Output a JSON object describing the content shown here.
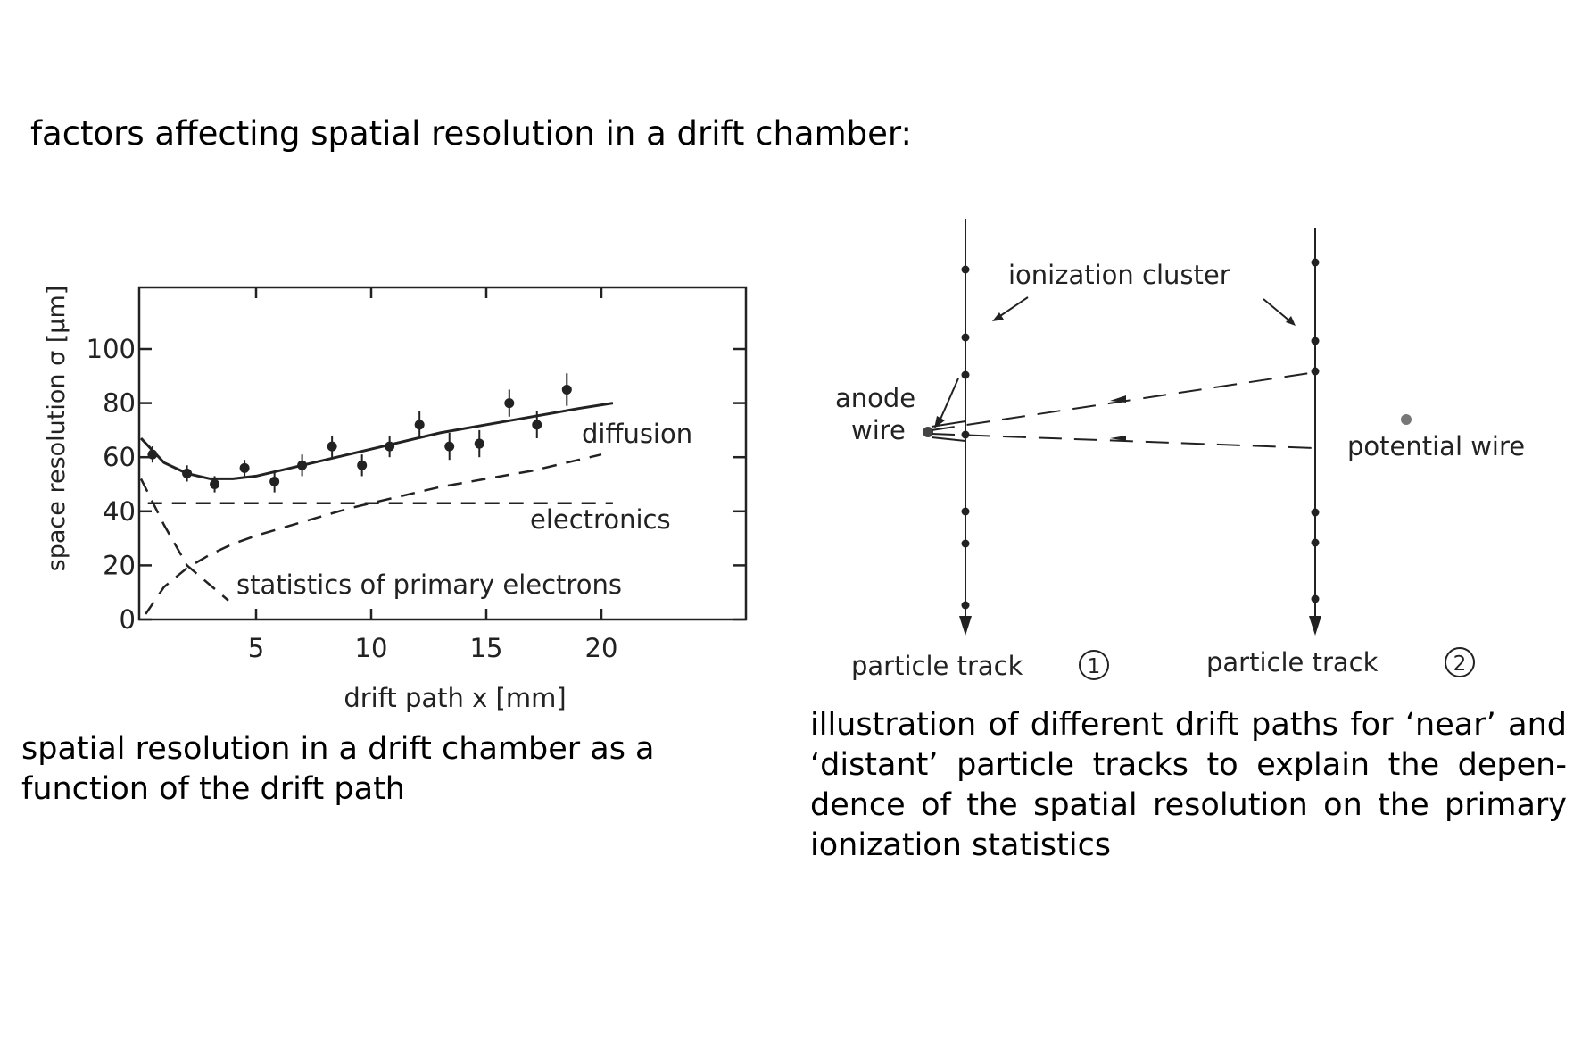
{
  "heading": "factors affecting spatial resolution in a drift chamber:",
  "left_caption": "spatial resolution in a drift chamber as a function of the drift path",
  "right_caption": "illustration of different drift paths for ‘near’ and ‘distant’ particle tracks to explain the dependence of the spatial resolution on the primary ionization statistics",
  "chart_data": {
    "type": "line",
    "xlabel": "drift  path  x [mm]",
    "ylabel": "space  resolution σ [μm]",
    "xlim": [
      0,
      26
    ],
    "ylim": [
      0,
      120
    ],
    "x_ticks": [
      5,
      10,
      15,
      20
    ],
    "y_ticks": [
      0,
      20,
      40,
      60,
      80,
      100
    ],
    "grid": false,
    "measurements": {
      "x": [
        0.5,
        2.0,
        3.2,
        4.5,
        5.8,
        7.0,
        8.3,
        9.6,
        10.8,
        12.1,
        13.4,
        14.7,
        16.0,
        17.2,
        18.5
      ],
      "y": [
        61,
        54,
        50,
        56,
        51,
        57,
        64,
        57,
        64,
        72,
        64,
        65,
        80,
        72,
        85
      ],
      "err": [
        3,
        3,
        3,
        3,
        4,
        4,
        4,
        4,
        4,
        5,
        5,
        5,
        5,
        5,
        6
      ]
    },
    "series": [
      {
        "name": "diffusion",
        "style": "solid",
        "x": [
          0,
          1,
          2,
          3,
          4,
          5,
          7,
          9,
          11,
          13,
          15,
          17,
          19,
          20.5
        ],
        "y": [
          67,
          58,
          54,
          52,
          52,
          53,
          57,
          61,
          65,
          69,
          72,
          75,
          78,
          80
        ]
      },
      {
        "name": "",
        "style": "dashed",
        "x": [
          0.2,
          1,
          2,
          3,
          4,
          5,
          7,
          9,
          11,
          13,
          15,
          17,
          19,
          20
        ],
        "y": [
          2,
          12,
          19,
          24,
          28,
          31,
          36,
          41,
          45,
          49,
          52,
          55,
          59,
          61
        ]
      },
      {
        "name": "electronics",
        "style": "dashed",
        "x": [
          0.3,
          20.5
        ],
        "y": [
          43,
          43
        ]
      },
      {
        "name": "statistics of primary electrons",
        "style": "dashed",
        "x": [
          0,
          1,
          2,
          3.8
        ],
        "y": [
          52,
          35,
          20,
          7
        ]
      }
    ],
    "annotations": {
      "diffusion": "diffusion",
      "electronics": "electronics",
      "statistics": "statistics  of  primary   electrons"
    }
  },
  "diagram": {
    "ionization_cluster": "ionization  cluster",
    "anode_wire": "anode",
    "anode_wire_2": "wire",
    "potential_wire": "potential  wire",
    "track1": "particle  track",
    "track2": "particle  track",
    "track1_number": "1",
    "track2_number": "2"
  }
}
